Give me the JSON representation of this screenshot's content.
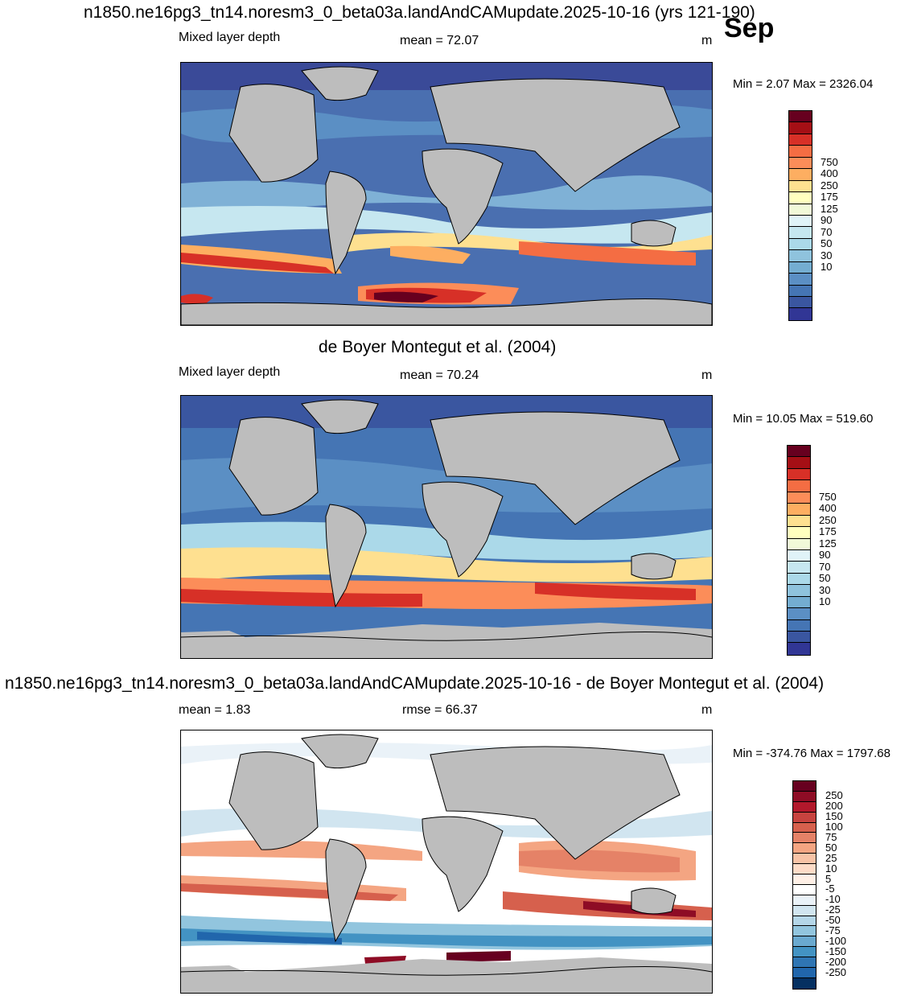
{
  "header": {
    "title": "n1850.ne16pg3_tn14.noresm3_0_beta03a.landAndCAMupdate.2025-10-16 (yrs 121-190)",
    "month": "Sep"
  },
  "panels": [
    {
      "variable": "Mixed layer depth",
      "mean_label": "mean =  72.07",
      "units": "m",
      "minmax": "Min =   2.07 Max = 2326.04"
    },
    {
      "heading": "de Boyer Montegut et al. (2004)",
      "variable": "Mixed layer depth",
      "mean_label": "mean =  70.24",
      "units": "m",
      "minmax": "Min =  10.05 Max = 519.60"
    },
    {
      "heading": "n1850.ne16pg3_tn14.noresm3_0_beta03a.landAndCAMupdate.2025-10-16 - de Boyer Montegut et al. (2004)",
      "mean_label": "mean =   1.83",
      "rmse_label": "rmse =  66.37",
      "units": "m",
      "minmax": "Min = -374.76 Max = 1797.68"
    }
  ],
  "colorbar_abs": {
    "labels": [
      "750",
      "400",
      "250",
      "175",
      "125",
      "90",
      "70",
      "50",
      "30",
      "10"
    ],
    "colors": [
      "#67001f",
      "#a50f15",
      "#d73027",
      "#f46d43",
      "#fc8d59",
      "#fdae61",
      "#fee090",
      "#ffffbf",
      "#f1f9d8",
      "#e0f3f8",
      "#c6e7f0",
      "#abd9e9",
      "#8fc3dd",
      "#74add1",
      "#5b8fc4",
      "#4575b4",
      "#3a56a0",
      "#313695"
    ]
  },
  "colorbar_diff": {
    "labels": [
      "250",
      "200",
      "150",
      "100",
      "75",
      "50",
      "25",
      "10",
      "5",
      "-5",
      "-10",
      "-25",
      "-50",
      "-75",
      "-100",
      "-150",
      "-200",
      "-250"
    ],
    "colors": [
      "#67001f",
      "#8e0c25",
      "#b2182b",
      "#c7433f",
      "#d6604d",
      "#e58267",
      "#f4a582",
      "#f8c3a6",
      "#fddbc7",
      "#fff0e6",
      "#ffffff",
      "#eaf2f8",
      "#d1e5f0",
      "#b4d6e8",
      "#92c5de",
      "#6aa9cf",
      "#4393c3",
      "#2f75b3",
      "#2166ac",
      "#053061"
    ]
  },
  "map_colors": {
    "land": "#bdbdbd",
    "coast": "#000000"
  }
}
